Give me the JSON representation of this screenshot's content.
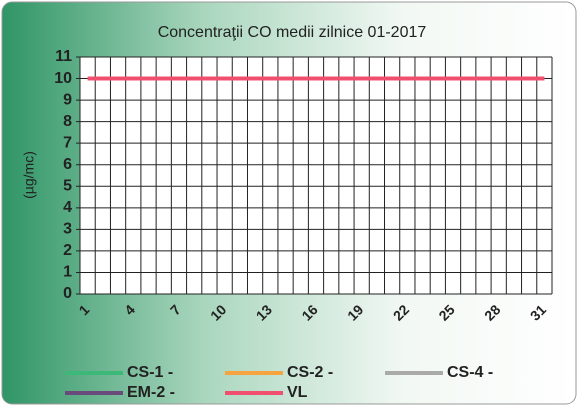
{
  "chart_data": {
    "type": "line",
    "title": "Concentraţii CO medii zilnice 01-2017",
    "y_label": "(µg/mc)",
    "categories": [
      "1",
      null,
      null,
      "4",
      null,
      null,
      "7",
      null,
      null,
      "10",
      null,
      null,
      "13",
      null,
      null,
      "16",
      null,
      null,
      "19",
      null,
      null,
      "22",
      null,
      null,
      "25",
      null,
      null,
      "28",
      null,
      null,
      "31"
    ],
    "series": [
      {
        "name": "CS-1 -",
        "color": "#3cb878",
        "values": [
          null,
          null,
          null,
          null,
          null,
          null,
          null,
          null,
          null,
          null,
          null,
          null,
          null,
          null,
          null,
          null,
          null,
          null,
          null,
          null,
          null,
          null,
          null,
          null,
          null,
          null,
          null,
          null,
          null,
          null,
          null
        ]
      },
      {
        "name": "CS-2 -",
        "color": "#f7a440",
        "values": [
          null,
          null,
          null,
          null,
          null,
          null,
          null,
          null,
          null,
          null,
          null,
          null,
          null,
          null,
          null,
          null,
          null,
          null,
          null,
          null,
          null,
          null,
          null,
          null,
          null,
          null,
          null,
          null,
          null,
          null,
          null
        ]
      },
      {
        "name": "CS-4 -",
        "color": "#aaaaaa",
        "values": [
          null,
          null,
          null,
          null,
          null,
          null,
          null,
          null,
          null,
          null,
          null,
          null,
          null,
          null,
          null,
          null,
          null,
          null,
          null,
          null,
          null,
          null,
          null,
          null,
          null,
          null,
          null,
          null,
          null,
          null,
          null
        ]
      },
      {
        "name": "EM-2 -",
        "color": "#6a4a7a",
        "values": [
          null,
          null,
          null,
          null,
          null,
          null,
          null,
          null,
          null,
          null,
          null,
          null,
          null,
          null,
          null,
          null,
          null,
          null,
          null,
          null,
          null,
          null,
          null,
          null,
          null,
          null,
          null,
          null,
          null,
          null,
          null
        ]
      },
      {
        "name": "VL",
        "color": "#f0506e",
        "values": [
          10,
          10,
          10,
          10,
          10,
          10,
          10,
          10,
          10,
          10,
          10,
          10,
          10,
          10,
          10,
          10,
          10,
          10,
          10,
          10,
          10,
          10,
          10,
          10,
          10,
          10,
          10,
          10,
          10,
          10,
          10
        ]
      }
    ],
    "ylim": [
      0,
      11
    ],
    "yticks": [
      0,
      1,
      2,
      3,
      4,
      5,
      6,
      7,
      8,
      9,
      10,
      11
    ],
    "grid": true
  }
}
